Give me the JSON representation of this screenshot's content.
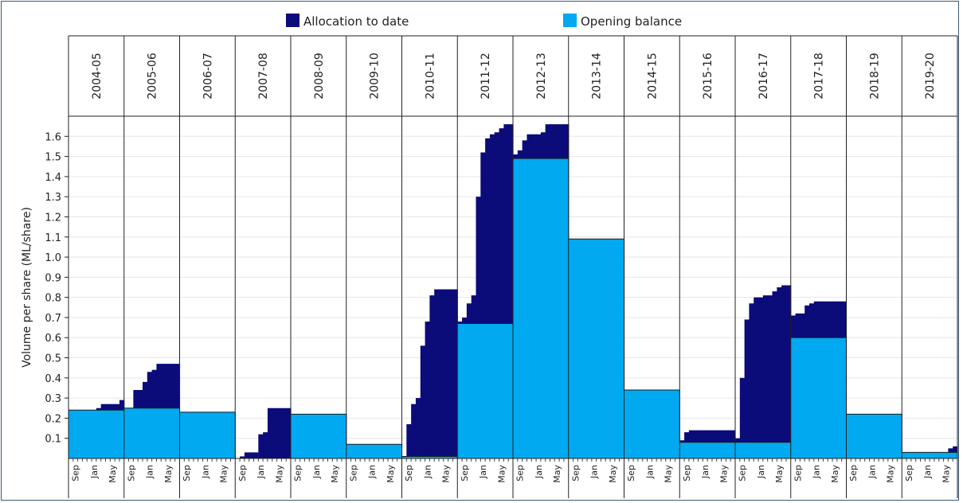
{
  "chart_data": {
    "type": "area",
    "title": "",
    "xlabel": "",
    "ylabel": "Volume per share (ML/share)",
    "ylim": [
      0,
      1.7
    ],
    "y_ticks": [
      "0.1",
      "0.2",
      "0.3",
      "0.4",
      "0.5",
      "0.6",
      "0.7",
      "0.8",
      "0.9",
      "1.0",
      "1.1",
      "1.2",
      "1.3",
      "1.4",
      "1.5",
      "1.6"
    ],
    "grid": "horizontal",
    "legend_position": "top-center",
    "month_labels": [
      "Sep",
      "Jan",
      "May"
    ],
    "colors": {
      "allocation": "#0b0b7a",
      "opening": "#00a9f0",
      "grid": "#e6e6e6",
      "frame": "#3d5a73"
    },
    "series": [
      {
        "name": "Allocation to date",
        "key": "allocation"
      },
      {
        "name": "Opening balance",
        "key": "opening"
      }
    ],
    "seasons": [
      {
        "label": "2004-05",
        "opening": 0.24,
        "allocation": [
          0.24,
          0.24,
          0.24,
          0.24,
          0.24,
          0.24,
          0.25,
          0.27,
          0.27,
          0.27,
          0.27,
          0.29
        ]
      },
      {
        "label": "2005-06",
        "opening": 0.25,
        "allocation": [
          0.25,
          0.25,
          0.34,
          0.34,
          0.38,
          0.43,
          0.44,
          0.47,
          0.47,
          0.47,
          0.47,
          0.47
        ]
      },
      {
        "label": "2006-07",
        "opening": 0.23,
        "allocation": [
          0.23,
          0.23,
          0.23,
          0.23,
          0.23,
          0.23,
          0.23,
          0.23,
          0.23,
          0.23,
          0.23,
          0.23
        ]
      },
      {
        "label": "2007-08",
        "opening": 0.0,
        "allocation": [
          0.0,
          0.01,
          0.03,
          0.03,
          0.03,
          0.12,
          0.13,
          0.25,
          0.25,
          0.25,
          0.25,
          0.25
        ]
      },
      {
        "label": "2008-09",
        "opening": 0.22,
        "allocation": [
          0.22,
          0.22,
          0.22,
          0.22,
          0.22,
          0.22,
          0.22,
          0.22,
          0.22,
          0.22,
          0.22,
          0.22
        ]
      },
      {
        "label": "2009-10",
        "opening": 0.07,
        "allocation": [
          0.07,
          0.07,
          0.07,
          0.07,
          0.07,
          0.07,
          0.07,
          0.07,
          0.07,
          0.07,
          0.07,
          0.07
        ]
      },
      {
        "label": "2010-11",
        "opening": 0.01,
        "allocation": [
          0.01,
          0.17,
          0.27,
          0.3,
          0.56,
          0.68,
          0.81,
          0.84,
          0.84,
          0.84,
          0.84,
          0.84
        ]
      },
      {
        "label": "2011-12",
        "opening": 0.67,
        "allocation": [
          0.68,
          0.7,
          0.77,
          0.81,
          1.3,
          1.52,
          1.59,
          1.61,
          1.62,
          1.64,
          1.66,
          1.66
        ]
      },
      {
        "label": "2012-13",
        "opening": 1.49,
        "allocation": [
          1.51,
          1.53,
          1.58,
          1.61,
          1.61,
          1.61,
          1.62,
          1.66,
          1.66,
          1.66,
          1.66,
          1.66
        ]
      },
      {
        "label": "2013-14",
        "opening": 1.09,
        "allocation": [
          1.09,
          1.09,
          1.09,
          1.09,
          1.09,
          1.09,
          1.09,
          1.09,
          1.09,
          1.09,
          1.09,
          1.09
        ]
      },
      {
        "label": "2014-15",
        "opening": 0.34,
        "allocation": [
          0.34,
          0.34,
          0.34,
          0.34,
          0.34,
          0.34,
          0.34,
          0.34,
          0.34,
          0.34,
          0.34,
          0.34
        ]
      },
      {
        "label": "2015-16",
        "opening": 0.08,
        "allocation": [
          0.09,
          0.13,
          0.14,
          0.14,
          0.14,
          0.14,
          0.14,
          0.14,
          0.14,
          0.14,
          0.14,
          0.14
        ]
      },
      {
        "label": "2016-17",
        "opening": 0.08,
        "allocation": [
          0.1,
          0.4,
          0.69,
          0.77,
          0.8,
          0.8,
          0.81,
          0.81,
          0.83,
          0.85,
          0.86,
          0.86
        ]
      },
      {
        "label": "2017-18",
        "opening": 0.6,
        "allocation": [
          0.71,
          0.72,
          0.72,
          0.76,
          0.77,
          0.78,
          0.78,
          0.78,
          0.78,
          0.78,
          0.78,
          0.78
        ]
      },
      {
        "label": "2018-19",
        "opening": 0.22,
        "allocation": [
          0.22,
          0.22,
          0.22,
          0.22,
          0.22,
          0.22,
          0.22,
          0.22,
          0.22,
          0.22,
          0.22,
          0.22
        ]
      },
      {
        "label": "2019-20",
        "opening": 0.03,
        "allocation": [
          0.03,
          0.03,
          0.03,
          0.03,
          0.03,
          0.03,
          0.03,
          0.03,
          0.03,
          0.03,
          0.05,
          0.06
        ]
      }
    ]
  }
}
